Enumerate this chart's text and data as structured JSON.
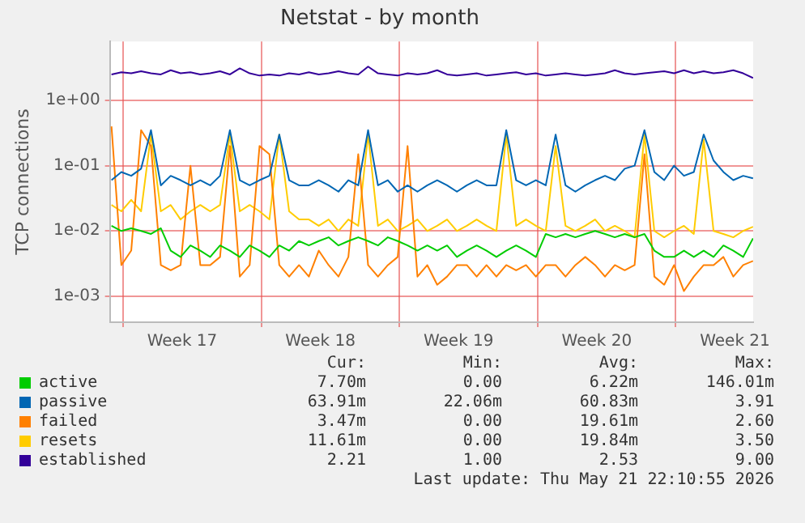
{
  "chart_data": {
    "type": "line",
    "title": "Netstat - by month",
    "ylabel": "TCP connections",
    "log": true,
    "grid": true,
    "legend": "bottom",
    "line_style": "solid",
    "ylim": [
      0.0004,
      8
    ],
    "yticks": [
      {
        "value": 0.001,
        "label": "1e-03"
      },
      {
        "value": 0.01,
        "label": "1e-02"
      },
      {
        "value": 0.1,
        "label": "1e-01"
      },
      {
        "value": 1,
        "label": "1e+00"
      }
    ],
    "xlim": [
      "2026-04-19T08:00",
      "2026-05-21T22:10"
    ],
    "xticks": [
      {
        "value": "2026-04-20",
        "label": null
      },
      {
        "value": "2026-04-23",
        "label": "Week 17"
      },
      {
        "value": "2026-04-27",
        "label": null
      },
      {
        "value": "2026-04-30",
        "label": "Week 18"
      },
      {
        "value": "2026-05-04",
        "label": null
      },
      {
        "value": "2026-05-07",
        "label": "Week 19"
      },
      {
        "value": "2026-05-11",
        "label": null
      },
      {
        "value": "2026-05-14",
        "label": "Week 20"
      },
      {
        "value": "2026-05-18",
        "label": null
      },
      {
        "value": "2026-05-21",
        "label": "Week 21"
      }
    ],
    "x": [
      "2026-04-19T10:00",
      "2026-04-19T22:00",
      "2026-04-20T10:00",
      "2026-04-20T22:00",
      "2026-04-21T10:00",
      "2026-04-21T22:00",
      "2026-04-22T10:00",
      "2026-04-22T22:00",
      "2026-04-23T10:00",
      "2026-04-23T22:00",
      "2026-04-24T10:00",
      "2026-04-24T22:00",
      "2026-04-25T10:00",
      "2026-04-25T22:00",
      "2026-04-26T10:00",
      "2026-04-26T22:00",
      "2026-04-27T10:00",
      "2026-04-27T22:00",
      "2026-04-28T10:00",
      "2026-04-28T22:00",
      "2026-04-29T10:00",
      "2026-04-29T22:00",
      "2026-04-30T10:00",
      "2026-04-30T22:00",
      "2026-05-01T10:00",
      "2026-05-01T22:00",
      "2026-05-02T10:00",
      "2026-05-02T22:00",
      "2026-05-03T10:00",
      "2026-05-03T22:00",
      "2026-05-04T10:00",
      "2026-05-04T22:00",
      "2026-05-05T10:00",
      "2026-05-05T22:00",
      "2026-05-06T10:00",
      "2026-05-06T22:00",
      "2026-05-07T10:00",
      "2026-05-07T22:00",
      "2026-05-08T10:00",
      "2026-05-08T22:00",
      "2026-05-09T10:00",
      "2026-05-09T22:00",
      "2026-05-10T10:00",
      "2026-05-10T22:00",
      "2026-05-11T10:00",
      "2026-05-11T22:00",
      "2026-05-12T10:00",
      "2026-05-12T22:00",
      "2026-05-13T10:00",
      "2026-05-13T22:00",
      "2026-05-14T10:00",
      "2026-05-14T22:00",
      "2026-05-15T10:00",
      "2026-05-15T22:00",
      "2026-05-16T10:00",
      "2026-05-16T22:00",
      "2026-05-17T10:00",
      "2026-05-17T22:00",
      "2026-05-18T10:00",
      "2026-05-18T22:00",
      "2026-05-19T10:00",
      "2026-05-19T22:00",
      "2026-05-20T10:00",
      "2026-05-20T22:00",
      "2026-05-21T10:00",
      "2026-05-21T22:00"
    ],
    "series": [
      {
        "name": "active",
        "color": "#00cc00",
        "values": [
          0.012,
          0.01,
          0.011,
          0.01,
          0.009,
          0.011,
          0.005,
          0.004,
          0.006,
          0.005,
          0.004,
          0.006,
          0.005,
          0.004,
          0.006,
          0.005,
          0.004,
          0.006,
          0.005,
          0.007,
          0.006,
          0.007,
          0.008,
          0.006,
          0.007,
          0.008,
          0.007,
          0.006,
          0.008,
          0.007,
          0.006,
          0.005,
          0.006,
          0.005,
          0.006,
          0.004,
          0.005,
          0.006,
          0.005,
          0.004,
          0.005,
          0.006,
          0.005,
          0.004,
          0.009,
          0.008,
          0.009,
          0.008,
          0.009,
          0.01,
          0.009,
          0.008,
          0.009,
          0.008,
          0.009,
          0.005,
          0.004,
          0.004,
          0.005,
          0.004,
          0.005,
          0.004,
          0.006,
          0.005,
          0.004,
          0.0077
        ]
      },
      {
        "name": "passive",
        "color": "#0066b3",
        "values": [
          0.06,
          0.08,
          0.07,
          0.09,
          0.35,
          0.05,
          0.07,
          0.06,
          0.05,
          0.06,
          0.05,
          0.07,
          0.35,
          0.06,
          0.05,
          0.06,
          0.07,
          0.3,
          0.06,
          0.05,
          0.05,
          0.06,
          0.05,
          0.04,
          0.06,
          0.05,
          0.35,
          0.05,
          0.06,
          0.04,
          0.05,
          0.04,
          0.05,
          0.06,
          0.05,
          0.04,
          0.05,
          0.06,
          0.05,
          0.05,
          0.35,
          0.06,
          0.05,
          0.06,
          0.05,
          0.3,
          0.05,
          0.04,
          0.05,
          0.06,
          0.07,
          0.06,
          0.09,
          0.1,
          0.35,
          0.08,
          0.06,
          0.1,
          0.07,
          0.08,
          0.3,
          0.12,
          0.08,
          0.06,
          0.07,
          0.064
        ]
      },
      {
        "name": "failed",
        "color": "#ff8000",
        "values": [
          0.4,
          0.003,
          0.005,
          0.35,
          0.2,
          0.003,
          0.0025,
          0.003,
          0.1,
          0.003,
          0.003,
          0.004,
          0.2,
          0.002,
          0.003,
          0.2,
          0.15,
          0.003,
          0.002,
          0.003,
          0.002,
          0.005,
          0.003,
          0.002,
          0.004,
          0.15,
          0.003,
          0.002,
          0.003,
          0.004,
          0.2,
          0.002,
          0.003,
          0.0015,
          0.002,
          0.003,
          0.003,
          0.002,
          0.003,
          0.002,
          0.003,
          0.0025,
          0.003,
          0.002,
          0.003,
          0.003,
          0.002,
          0.003,
          0.004,
          0.003,
          0.002,
          0.003,
          0.0025,
          0.003,
          0.15,
          0.002,
          0.0015,
          0.003,
          0.0012,
          0.002,
          0.003,
          0.003,
          0.004,
          0.002,
          0.003,
          0.00347
        ]
      },
      {
        "name": "resets",
        "color": "#ffcc00",
        "values": [
          0.025,
          0.02,
          0.03,
          0.02,
          0.3,
          0.02,
          0.025,
          0.015,
          0.02,
          0.025,
          0.02,
          0.025,
          0.3,
          0.02,
          0.025,
          0.02,
          0.015,
          0.3,
          0.02,
          0.015,
          0.015,
          0.012,
          0.015,
          0.01,
          0.015,
          0.012,
          0.3,
          0.012,
          0.015,
          0.01,
          0.012,
          0.015,
          0.01,
          0.012,
          0.015,
          0.01,
          0.012,
          0.015,
          0.012,
          0.01,
          0.3,
          0.012,
          0.015,
          0.012,
          0.01,
          0.2,
          0.012,
          0.01,
          0.012,
          0.015,
          0.01,
          0.012,
          0.01,
          0.008,
          0.3,
          0.01,
          0.008,
          0.01,
          0.012,
          0.009,
          0.25,
          0.01,
          0.009,
          0.008,
          0.01,
          0.0116
        ]
      },
      {
        "name": "established",
        "color": "#330099",
        "values": [
          2.5,
          2.7,
          2.6,
          2.8,
          2.6,
          2.5,
          2.9,
          2.6,
          2.7,
          2.5,
          2.6,
          2.8,
          2.5,
          3.1,
          2.6,
          2.4,
          2.5,
          2.4,
          2.6,
          2.5,
          2.7,
          2.5,
          2.6,
          2.8,
          2.6,
          2.5,
          3.3,
          2.6,
          2.5,
          2.4,
          2.6,
          2.5,
          2.6,
          2.9,
          2.5,
          2.4,
          2.5,
          2.6,
          2.4,
          2.5,
          2.6,
          2.7,
          2.5,
          2.6,
          2.4,
          2.5,
          2.6,
          2.5,
          2.4,
          2.5,
          2.6,
          2.9,
          2.6,
          2.5,
          2.6,
          2.7,
          2.8,
          2.6,
          2.9,
          2.6,
          2.8,
          2.6,
          2.7,
          2.9,
          2.6,
          2.21
        ]
      }
    ],
    "annotations": [
      "Cur:",
      "Min:",
      "Avg:",
      "Max:",
      "7.70m",
      "0.00",
      "6.22m",
      "146.01m",
      "63.91m",
      "22.06m",
      "60.83m",
      "3.91",
      "3.47m",
      "0.00",
      "19.61m",
      "2.60",
      "11.61m",
      "0.00",
      "19.84m",
      "3.50",
      "2.21",
      "1.00",
      "2.53",
      "9.00",
      "Last update: Thu May 21 22:10:55 2026"
    ]
  }
}
